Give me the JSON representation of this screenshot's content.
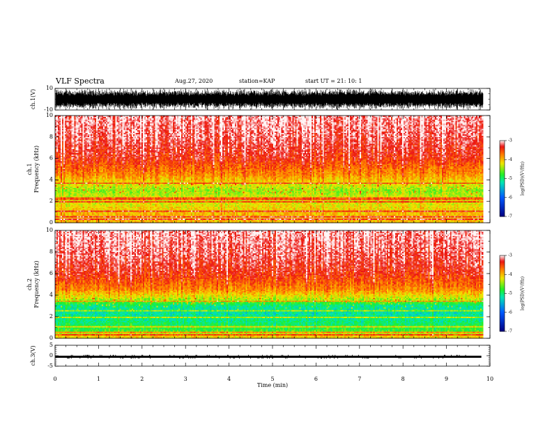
{
  "header": {
    "title": "VLF Spectra",
    "date": "Aug.27, 2020",
    "station": "station=KAP",
    "start_ut": "start UT =  21: 10: 1"
  },
  "chart_data": [
    {
      "type": "line",
      "panel": "ch1-waveform",
      "ylabel": "ch.1(V)",
      "ylim": [
        -10,
        10
      ],
      "yticks": [
        "10",
        "-10"
      ],
      "xlim": [
        0,
        10
      ],
      "grid": false
    },
    {
      "type": "heatmap",
      "panel": "ch1-spectrogram",
      "ylabel": "ch.1\nFrequency (kHz)",
      "ylim": [
        0,
        10
      ],
      "yticks": [
        "0",
        "2",
        "4",
        "6",
        "8",
        "10"
      ],
      "xlim": [
        0,
        10
      ],
      "colorbar": {
        "label": "log(PSD)(V²/Hz)",
        "range": [
          -7,
          -3
        ],
        "ticks": [
          "-3",
          "-4",
          "-5",
          "-6",
          "-7"
        ]
      },
      "approx_log_psd_by_freq_khz": {
        "freq": [
          0.2,
          0.8,
          1.6,
          2.4,
          3.0,
          3.6,
          4.5,
          6,
          8,
          10
        ],
        "value": [
          -4.0,
          -4.0,
          -4.2,
          -4.3,
          -4.5,
          -4.2,
          -3.8,
          -3.4,
          -3.2,
          -3.1
        ]
      }
    },
    {
      "type": "heatmap",
      "panel": "ch2-spectrogram",
      "ylabel": "ch.2\nFrequency (kHz)",
      "ylim": [
        0,
        10
      ],
      "yticks": [
        "0",
        "2",
        "4",
        "6",
        "8",
        "10"
      ],
      "xlim": [
        0,
        10
      ],
      "colorbar": {
        "label": "log(PSD)(V²/Hz)",
        "range": [
          -7,
          -3
        ],
        "ticks": [
          "-3",
          "-4",
          "-5",
          "-6",
          "-7"
        ]
      },
      "approx_log_psd_by_freq_khz": {
        "freq": [
          0.2,
          0.8,
          1.4,
          2.4,
          3.0,
          3.6,
          4.5,
          6,
          8,
          10
        ],
        "value": [
          -4.1,
          -4.8,
          -5.0,
          -5.2,
          -5.1,
          -4.4,
          -3.8,
          -3.4,
          -3.2,
          -3.1
        ]
      }
    },
    {
      "type": "line",
      "panel": "ch3-waveform",
      "ylabel": "ch.3(V)",
      "ylim": [
        -5,
        5
      ],
      "yticks": [
        "5",
        "0",
        "-5"
      ],
      "xlim": [
        0,
        10
      ],
      "xticks": [
        "0",
        "1",
        "2",
        "3",
        "4",
        "5",
        "6",
        "7",
        "8",
        "9",
        "10"
      ],
      "xlabel": "Time (min)",
      "data_end_min": 9.8,
      "approx_level_v": [
        -1,
        0
      ]
    }
  ]
}
